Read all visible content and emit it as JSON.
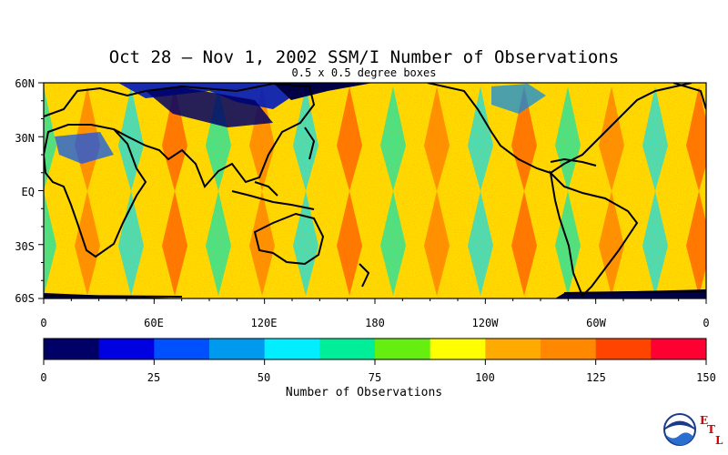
{
  "title": "Oct 28 – Nov 1, 2002 SSM/I Number of Observations",
  "subtitle": "0.5 x 0.5 degree boxes",
  "lat_labels": [
    "60N",
    "30N",
    "EQ",
    "30S",
    "60S"
  ],
  "lon_labels": [
    "0",
    "60E",
    "120E",
    "180",
    "120W",
    "60W",
    "0"
  ],
  "colorbar": {
    "title": "Number of Observations",
    "tick_labels": [
      "0",
      "25",
      "50",
      "75",
      "100",
      "125",
      "150"
    ],
    "colors": [
      "#000066",
      "#0000e0",
      "#0050ff",
      "#0099f0",
      "#00eeff",
      "#00ee99",
      "#66ee11",
      "#ffff00",
      "#ffaa00",
      "#ff8800",
      "#ff4400",
      "#ff0033"
    ]
  },
  "logo": {
    "text": "NOAA",
    "letters": [
      "E",
      "T",
      "L"
    ]
  }
}
